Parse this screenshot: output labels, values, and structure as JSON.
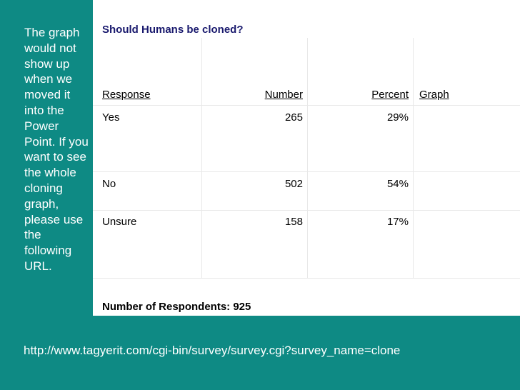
{
  "note": "The graph would not show up when we moved it into the Power Point.  If you want to see the whole cloning graph, please use the following URL.",
  "table": {
    "title": "Should Humans be cloned?",
    "headers": [
      "Response",
      "Number",
      "Percent",
      "Graph"
    ],
    "rows": [
      {
        "response": "Yes",
        "number": "265",
        "percent": "29%"
      },
      {
        "response": "No",
        "number": "502",
        "percent": "54%"
      },
      {
        "response": "Unsure",
        "number": "158",
        "percent": "17%"
      }
    ],
    "footer": "Number of Respondents: 925"
  },
  "url": "http://www.tagyerit.com/cgi-bin/survey/survey.cgi?survey_name=clone",
  "colors": {
    "background": "#0e8a84",
    "title": "#1a1a6e"
  }
}
